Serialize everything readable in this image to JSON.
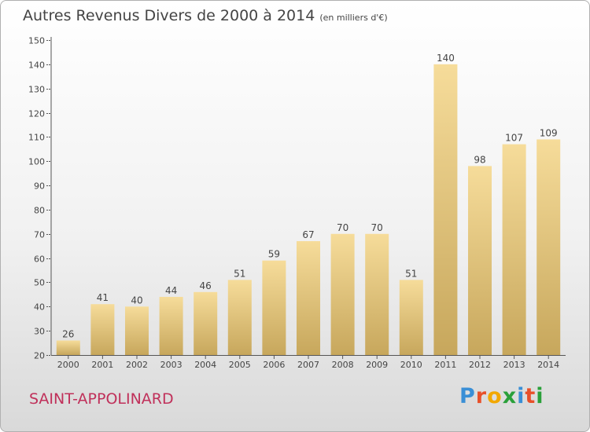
{
  "title": "Autres Revenus Divers de 2000 à 2014",
  "subtitle": "(en milliers d'€)",
  "commune": "SAINT-APPOLINARD",
  "logo": {
    "letters": [
      "P",
      "r",
      "o",
      "x",
      "i",
      "t",
      "i"
    ],
    "colors": [
      "#3a8fd6",
      "#e8502a",
      "#f2a800",
      "#2aa03a",
      "#3a8fd6",
      "#e8502a",
      "#2aa03a"
    ]
  },
  "colors": {
    "bar_light": "#f6dc9a",
    "bar_dark": "#c7a75c",
    "axis": "#555555",
    "grid": "#555555"
  },
  "chart_data": {
    "type": "bar",
    "title": "Autres Revenus Divers de 2000 à 2014",
    "subtitle": "(en milliers d'€)",
    "categories": [
      "2000",
      "2001",
      "2002",
      "2003",
      "2004",
      "2005",
      "2006",
      "2007",
      "2008",
      "2009",
      "2010",
      "2011",
      "2012",
      "2013",
      "2014"
    ],
    "values": [
      26,
      41,
      40,
      44,
      46,
      51,
      59,
      67,
      70,
      70,
      51,
      140,
      98,
      107,
      109
    ],
    "ylim": [
      20,
      150
    ],
    "yticks": [
      20,
      30,
      40,
      50,
      60,
      70,
      80,
      90,
      100,
      110,
      120,
      130,
      140,
      150
    ],
    "grid": false,
    "xlabel": "",
    "ylabel": ""
  }
}
